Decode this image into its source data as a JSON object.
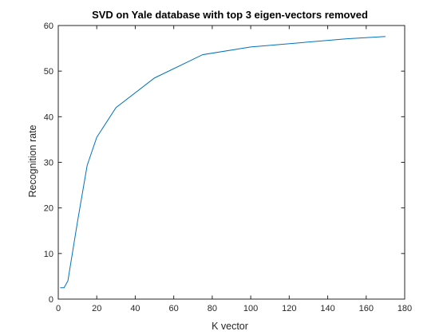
{
  "chart_data": {
    "type": "line",
    "title": "SVD on Yale database with top 3 eigen-vectors removed",
    "xlabel": "K vector",
    "ylabel": "Recognition rate",
    "xlim": [
      0,
      180
    ],
    "ylim": [
      0,
      60
    ],
    "xticks": [
      0,
      20,
      40,
      60,
      80,
      100,
      120,
      140,
      160,
      180
    ],
    "yticks": [
      0,
      10,
      20,
      30,
      40,
      50,
      60
    ],
    "grid": false,
    "box": true,
    "series": [
      {
        "color": "#0072bd",
        "x": [
          1,
          3,
          5,
          10,
          15,
          20,
          30,
          50,
          75,
          100,
          150,
          170
        ],
        "y": [
          2.5,
          2.5,
          4.0,
          17.0,
          29.3,
          35.5,
          42.0,
          48.5,
          53.6,
          55.3,
          57.1,
          57.6
        ]
      }
    ]
  }
}
